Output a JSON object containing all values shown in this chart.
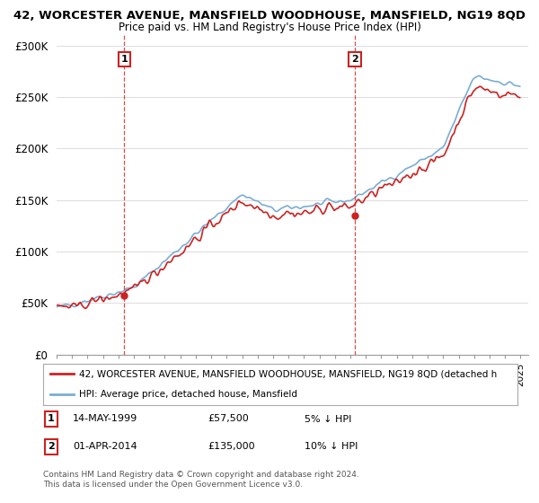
{
  "title1": "42, WORCESTER AVENUE, MANSFIELD WOODHOUSE, MANSFIELD, NG19 8QD",
  "title2": "Price paid vs. HM Land Registry's House Price Index (HPI)",
  "ylim": [
    0,
    310000
  ],
  "yticks": [
    0,
    50000,
    100000,
    150000,
    200000,
    250000,
    300000
  ],
  "ytick_labels": [
    "£0",
    "£50K",
    "£100K",
    "£150K",
    "£200K",
    "£250K",
    "£300K"
  ],
  "hpi_color": "#7aadd4",
  "price_color": "#cc2222",
  "marker1_price": 57500,
  "marker1_label": "1",
  "marker1_date_str": "14-MAY-1999",
  "marker1_price_str": "£57,500",
  "marker1_pct": "5% ↓ HPI",
  "marker2_price": 135000,
  "marker2_label": "2",
  "marker2_date_str": "01-APR-2014",
  "marker2_price_str": "£135,000",
  "marker2_pct": "10% ↓ HPI",
  "legend_line1": "42, WORCESTER AVENUE, MANSFIELD WOODHOUSE, MANSFIELD, NG19 8QD (detached h",
  "legend_line2": "HPI: Average price, detached house, Mansfield",
  "footer1": "Contains HM Land Registry data © Crown copyright and database right 2024.",
  "footer2": "This data is licensed under the Open Government Licence v3.0.",
  "bg_color": "#ffffff",
  "grid_color": "#dddddd"
}
